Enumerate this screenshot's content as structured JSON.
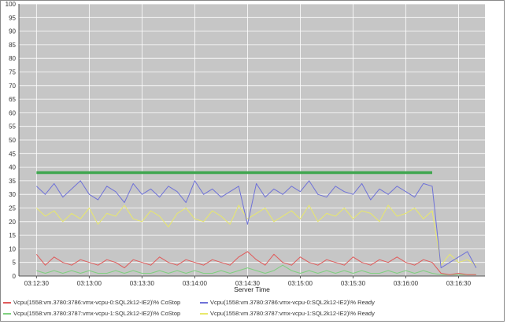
{
  "chart_data": {
    "type": "line",
    "xlabel": "Server Time",
    "ylabel": "",
    "ylim": [
      0,
      100
    ],
    "yticks": [
      0,
      5,
      10,
      15,
      20,
      25,
      30,
      35,
      40,
      45,
      50,
      55,
      60,
      65,
      70,
      75,
      80,
      85,
      90,
      95,
      100
    ],
    "xlim": [
      "03:12:20",
      "03:16:45"
    ],
    "xticks": [
      "03:12:30",
      "03:13:00",
      "03:13:30",
      "03:14:00",
      "03:14:30",
      "03:15:00",
      "03:15:30",
      "03:16:00",
      "03:16:30"
    ],
    "grid": true,
    "legend_position": "bottom",
    "series": [
      {
        "name": "Vcpu(1558:vm.3780:3786:vmx-vcpu-0:SQL2k12-IE2)\\% CoStop",
        "color": "#e05a5a",
        "x": [
          "03:12:30",
          "03:12:35",
          "03:12:40",
          "03:12:45",
          "03:12:50",
          "03:12:55",
          "03:13:00",
          "03:13:05",
          "03:13:10",
          "03:13:15",
          "03:13:20",
          "03:13:25",
          "03:13:30",
          "03:13:35",
          "03:13:40",
          "03:13:45",
          "03:13:50",
          "03:13:55",
          "03:14:00",
          "03:14:05",
          "03:14:10",
          "03:14:15",
          "03:14:20",
          "03:14:25",
          "03:14:30",
          "03:14:35",
          "03:14:40",
          "03:14:45",
          "03:14:50",
          "03:14:55",
          "03:15:00",
          "03:15:05",
          "03:15:10",
          "03:15:15",
          "03:15:20",
          "03:15:25",
          "03:15:30",
          "03:15:35",
          "03:15:40",
          "03:15:45",
          "03:15:50",
          "03:15:55",
          "03:16:00",
          "03:16:05",
          "03:16:10",
          "03:16:15",
          "03:16:20",
          "03:16:25",
          "03:16:30",
          "03:16:35",
          "03:16:40"
        ],
        "values": [
          8,
          4,
          7,
          5,
          4,
          6,
          5,
          4,
          6,
          5,
          3,
          6,
          5,
          4,
          7,
          5,
          4,
          6,
          5,
          4,
          6,
          5,
          4,
          7,
          9,
          6,
          4,
          8,
          5,
          4,
          7,
          5,
          4,
          6,
          5,
          4,
          7,
          5,
          4,
          6,
          5,
          7,
          5,
          4,
          6,
          5,
          1,
          0.5,
          1,
          0.5,
          0.5
        ]
      },
      {
        "name": "Vcpu(1558:vm.3780:3786:vmx-vcpu-0:SQL2k12-IE2)\\% Ready",
        "color": "#6f72d8",
        "x": [
          "03:12:30",
          "03:12:35",
          "03:12:40",
          "03:12:45",
          "03:12:50",
          "03:12:55",
          "03:13:00",
          "03:13:05",
          "03:13:10",
          "03:13:15",
          "03:13:20",
          "03:13:25",
          "03:13:30",
          "03:13:35",
          "03:13:40",
          "03:13:45",
          "03:13:50",
          "03:13:55",
          "03:14:00",
          "03:14:05",
          "03:14:10",
          "03:14:15",
          "03:14:20",
          "03:14:25",
          "03:14:30",
          "03:14:35",
          "03:14:40",
          "03:14:45",
          "03:14:50",
          "03:14:55",
          "03:15:00",
          "03:15:05",
          "03:15:10",
          "03:15:15",
          "03:15:20",
          "03:15:25",
          "03:15:30",
          "03:15:35",
          "03:15:40",
          "03:15:45",
          "03:15:50",
          "03:15:55",
          "03:16:00",
          "03:16:05",
          "03:16:10",
          "03:16:15",
          "03:16:20",
          "03:16:25",
          "03:16:30",
          "03:16:35",
          "03:16:40"
        ],
        "values": [
          33,
          30,
          34,
          29,
          32,
          35,
          30,
          28,
          33,
          31,
          27,
          34,
          30,
          32,
          29,
          33,
          31,
          27,
          35,
          30,
          32,
          29,
          31,
          33,
          19,
          34,
          29,
          32,
          30,
          33,
          31,
          35,
          30,
          29,
          33,
          31,
          30,
          34,
          28,
          32,
          30,
          33,
          31,
          29,
          34,
          33,
          3,
          5,
          7,
          9,
          3
        ]
      },
      {
        "name": "Vcpu(1558:vm.3780:3787:vmx-vcpu-1:SQL2k12-IE2)\\% CoStop",
        "color": "#7fd07f",
        "x": [
          "03:12:30",
          "03:12:35",
          "03:12:40",
          "03:12:45",
          "03:12:50",
          "03:12:55",
          "03:13:00",
          "03:13:05",
          "03:13:10",
          "03:13:15",
          "03:13:20",
          "03:13:25",
          "03:13:30",
          "03:13:35",
          "03:13:40",
          "03:13:45",
          "03:13:50",
          "03:13:55",
          "03:14:00",
          "03:14:05",
          "03:14:10",
          "03:14:15",
          "03:14:20",
          "03:14:25",
          "03:14:30",
          "03:14:35",
          "03:14:40",
          "03:14:45",
          "03:14:50",
          "03:14:55",
          "03:15:00",
          "03:15:05",
          "03:15:10",
          "03:15:15",
          "03:15:20",
          "03:15:25",
          "03:15:30",
          "03:15:35",
          "03:15:40",
          "03:15:45",
          "03:15:50",
          "03:15:55",
          "03:16:00",
          "03:16:05",
          "03:16:10",
          "03:16:15",
          "03:16:20",
          "03:16:25",
          "03:16:30",
          "03:16:35",
          "03:16:40"
        ],
        "values": [
          2,
          1,
          2,
          1,
          2,
          1,
          2,
          1,
          1,
          2,
          1,
          2,
          1,
          1,
          2,
          1,
          2,
          1,
          2,
          1,
          1,
          2,
          1,
          2,
          3,
          2,
          1,
          2,
          4,
          2,
          1,
          2,
          1,
          2,
          1,
          2,
          1,
          2,
          1,
          1,
          2,
          1,
          2,
          1,
          2,
          1,
          0.5,
          0.5,
          0.5,
          0.5,
          0.5
        ]
      },
      {
        "name": "Vcpu(1558:vm.3780:3787:vmx-vcpu-1:SQL2k12-IE2)\\% Ready",
        "color": "#e8e86a",
        "x": [
          "03:12:30",
          "03:12:35",
          "03:12:40",
          "03:12:45",
          "03:12:50",
          "03:12:55",
          "03:13:00",
          "03:13:05",
          "03:13:10",
          "03:13:15",
          "03:13:20",
          "03:13:25",
          "03:13:30",
          "03:13:35",
          "03:13:40",
          "03:13:45",
          "03:13:50",
          "03:13:55",
          "03:14:00",
          "03:14:05",
          "03:14:10",
          "03:14:15",
          "03:14:20",
          "03:14:25",
          "03:14:30",
          "03:14:35",
          "03:14:40",
          "03:14:45",
          "03:14:50",
          "03:14:55",
          "03:15:00",
          "03:15:05",
          "03:15:10",
          "03:15:15",
          "03:15:20",
          "03:15:25",
          "03:15:30",
          "03:15:35",
          "03:15:40",
          "03:15:45",
          "03:15:50",
          "03:15:55",
          "03:16:00",
          "03:16:05",
          "03:16:10",
          "03:16:15",
          "03:16:20",
          "03:16:25",
          "03:16:30",
          "03:16:35",
          "03:16:40"
        ],
        "values": [
          25,
          22,
          24,
          20,
          23,
          21,
          25,
          19,
          23,
          22,
          26,
          21,
          20,
          24,
          22,
          18,
          23,
          25,
          21,
          20,
          24,
          22,
          19,
          26,
          21,
          23,
          25,
          20,
          22,
          24,
          21,
          26,
          20,
          23,
          22,
          25,
          21,
          24,
          23,
          20,
          26,
          22,
          23,
          25,
          21,
          24,
          4,
          8,
          5,
          6,
          4
        ]
      },
      {
        "name": "",
        "color": "#3fa64f",
        "x": [
          "03:12:30",
          "03:16:15"
        ],
        "values": [
          38,
          38
        ]
      }
    ]
  }
}
